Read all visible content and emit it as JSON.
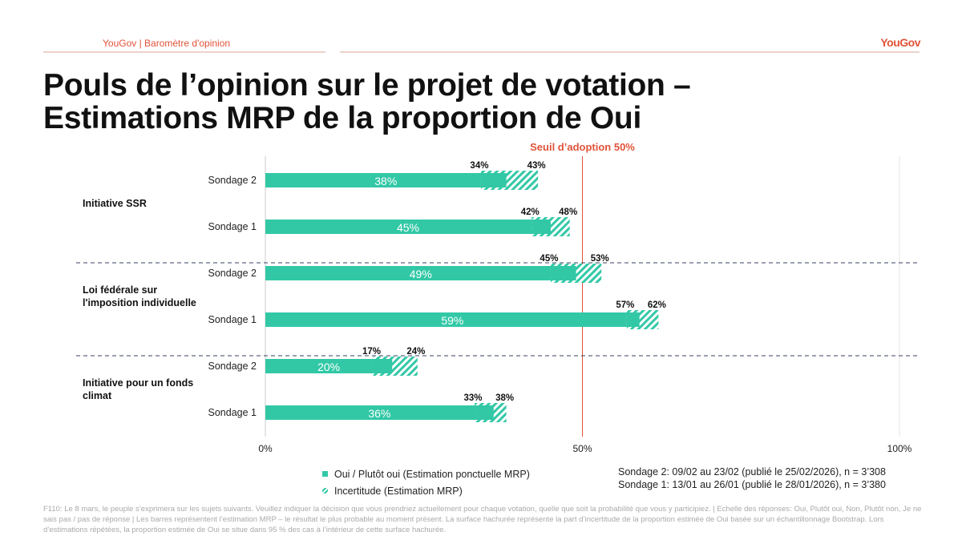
{
  "header": {
    "left": "YouGov | Baromètre d'opinion",
    "logo": "YouGov"
  },
  "title_line1": "Pouls de l’opinion sur le projet de votation –",
  "title_line2": "Estimations MRP de la proportion de Oui",
  "chart_data": {
    "type": "bar",
    "orientation": "horizontal",
    "xlim": [
      0,
      100
    ],
    "x_ticks": [
      "0%",
      "50%",
      "100%"
    ],
    "threshold": {
      "value": 50,
      "label": "Seuil d’adoption 50%",
      "color": "#e0533a"
    },
    "groups": [
      {
        "name": "Initiative SSR",
        "rows": [
          {
            "label": "Sondage 2",
            "value": 38,
            "low": 34,
            "high": 43
          },
          {
            "label": "Sondage 1",
            "value": 45,
            "low": 42,
            "high": 48
          }
        ]
      },
      {
        "name": "Loi fédérale sur l'imposition individuelle",
        "rows": [
          {
            "label": "Sondage 2",
            "value": 49,
            "low": 45,
            "high": 53
          },
          {
            "label": "Sondage 1",
            "value": 59,
            "low": 57,
            "high": 62
          }
        ]
      },
      {
        "name": "Initiative pour un fonds climat",
        "rows": [
          {
            "label": "Sondage 2",
            "value": 20,
            "low": 17,
            "high": 24
          },
          {
            "label": "Sondage 1",
            "value": 36,
            "low": 33,
            "high": 38
          }
        ]
      }
    ],
    "colors": {
      "bar": "#32c8a6"
    },
    "legend": [
      "Oui / Plutôt oui (Estimation ponctuelle MRP)",
      "Incertitude (Estimation MRP)"
    ]
  },
  "notes": [
    "Sondage 2: 09/02 au 23/02 (publié le 25/02/2026), n = 3’308",
    "Sondage 1: 13/01 au 26/01 (publié le 28/01/2026), n = 3’380"
  ],
  "footnote": "F110: Le 8 mars, le peuple s’exprimera sur les sujets suivants. Veuillez indiquer la décision que vous prendriez actuellement pour chaque votation, quelle que soit la probabilité que vous y participiez. | Echelle des réponses: Oui, Plutôt oui, Non, Plutôt non, Je ne sais pas / pas de réponse | Les barres représentent l’estimation MRP – le résultat le plus probable au moment présent. La surface hachurée représente la part d’incertitude de la proportion estimée de Oui basée sur un échantillonnage Bootstrap. Lors d’estimations répétées, la proportion estimée de Oui se situe dans 95 % des cas à l’intérieur de cette surface hachurée."
}
